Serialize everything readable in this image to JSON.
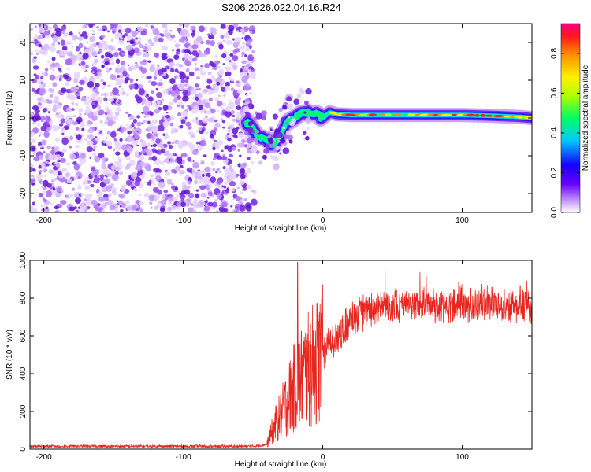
{
  "title": "S206.2026.022.04.16.R24",
  "colors": {
    "axis": "#000000",
    "snr_line": "#e8261f",
    "speck": "#7b2bd8"
  },
  "chart_data": [
    {
      "type": "heatmap",
      "xlabel": "Height of straight line (km)",
      "ylabel": "Frequency (Hz)",
      "xlim": [
        -210,
        150
      ],
      "ylim": [
        -25,
        25
      ],
      "xticks": [
        -200,
        -100,
        0,
        100
      ],
      "yticks": [
        -20,
        -10,
        0,
        10,
        20
      ],
      "noise_region_x": [
        -210,
        -50
      ],
      "ridge": {
        "x": [
          -55,
          -50,
          -45,
          -40,
          -35,
          -30,
          -25,
          -20,
          -15,
          -10,
          -5,
          0,
          5,
          10,
          20,
          40,
          60,
          80,
          100,
          120,
          140,
          150
        ],
        "y": [
          -1,
          -3,
          -5,
          -6,
          -7,
          -4,
          -1,
          0,
          1,
          1.5,
          1,
          0,
          1.5,
          1,
          0.8,
          0.8,
          0.8,
          0.8,
          0.8,
          0.6,
          0.3,
          0
        ]
      },
      "colorbar": {
        "label": "Normalized spectral amplitude",
        "range": [
          0,
          0.95
        ],
        "ticks": [
          0.0,
          0.2,
          0.4,
          0.6,
          0.8
        ]
      }
    },
    {
      "type": "line",
      "xlabel": "Height of straight line (km)",
      "ylabel": "SNR (10 * v/v)",
      "xlim": [
        -210,
        150
      ],
      "ylim": [
        0,
        1000
      ],
      "xticks": [
        -200,
        -100,
        0,
        100
      ],
      "yticks": [
        0,
        200,
        400,
        600,
        800,
        1000
      ],
      "series": [
        {
          "name": "SNR",
          "x": [
            -210,
            -150,
            -100,
            -50,
            -40,
            -35,
            -30,
            -25,
            -20,
            -15,
            -10,
            -5,
            0,
            5,
            10,
            20,
            30,
            40,
            50,
            60,
            70,
            80,
            90,
            100,
            110,
            120,
            130,
            140,
            150
          ],
          "y": [
            15,
            15,
            15,
            15,
            25,
            120,
            180,
            260,
            330,
            380,
            420,
            460,
            500,
            560,
            600,
            680,
            730,
            760,
            760,
            770,
            770,
            750,
            760,
            770,
            760,
            780,
            760,
            770,
            760
          ]
        }
      ],
      "spike": {
        "x": -18,
        "y": 990
      }
    }
  ]
}
